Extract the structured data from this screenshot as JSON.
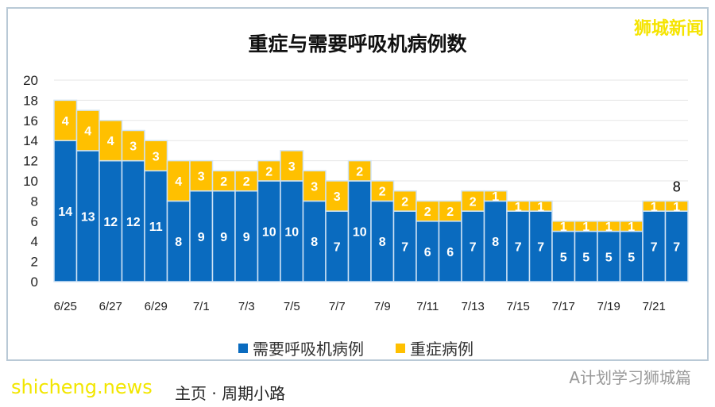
{
  "brand": "狮城新闻",
  "footer": {
    "source": "A计划学习狮城篇",
    "note": "主页 · 周期小路",
    "watermark": "shicheng.news"
  },
  "chart_data": {
    "type": "bar",
    "stacked": true,
    "title": "重症与需要呼吸机病例数",
    "categories": [
      "6/25",
      "6/26",
      "6/27",
      "6/28",
      "6/29",
      "6/30",
      "7/1",
      "7/2",
      "7/3",
      "7/4",
      "7/5",
      "7/6",
      "7/7",
      "7/8",
      "7/9",
      "7/10",
      "7/11",
      "7/12",
      "7/13",
      "7/14",
      "7/15",
      "7/16",
      "7/17",
      "7/18",
      "7/19",
      "7/20",
      "7/21",
      "7/22"
    ],
    "tick_labels": [
      "6/25",
      "6/27",
      "6/29",
      "7/1",
      "7/3",
      "7/5",
      "7/7",
      "7/9",
      "7/11",
      "7/13",
      "7/15",
      "7/17",
      "7/19",
      "7/21"
    ],
    "series": [
      {
        "name": "需要呼吸机病例",
        "color": "#0a6bbf",
        "values": [
          14,
          13,
          12,
          12,
          11,
          8,
          9,
          9,
          9,
          10,
          10,
          8,
          7,
          10,
          8,
          7,
          6,
          6,
          7,
          8,
          7,
          7,
          5,
          5,
          5,
          5,
          7,
          7
        ]
      },
      {
        "name": "重症病例",
        "color": "#ffc000",
        "values": [
          4,
          4,
          4,
          3,
          3,
          4,
          3,
          2,
          2,
          2,
          3,
          3,
          3,
          2,
          2,
          2,
          2,
          2,
          2,
          1,
          1,
          1,
          1,
          1,
          1,
          1,
          1,
          1
        ]
      }
    ],
    "annotation": "8",
    "ylim": [
      0,
      20
    ],
    "yticks": [
      0,
      2,
      4,
      6,
      8,
      10,
      12,
      14,
      16,
      18,
      20
    ],
    "grid": true,
    "legend": "bottom"
  }
}
